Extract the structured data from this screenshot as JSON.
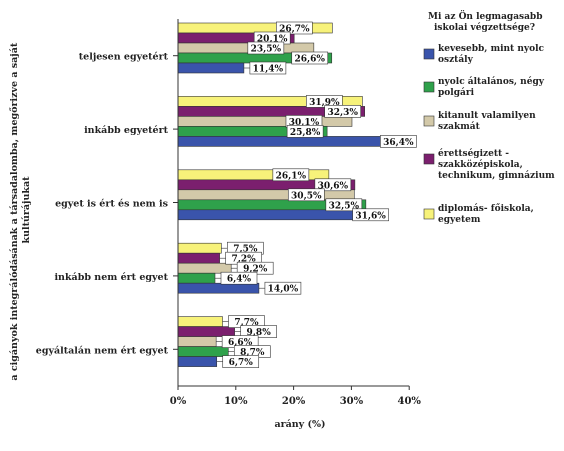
{
  "chart_data": {
    "type": "bar",
    "orientation": "horizontal",
    "categories": [
      "teljesen egyetért",
      "inkább egyetért",
      "egyet is ért és nem is",
      "inkább nem ért egyet",
      "egyáltalán nem ért egyet"
    ],
    "legend_title": "Mi az Ön legmagasabb iskolai végzettsége?",
    "series": [
      {
        "name": "kevesebb, mint nyolc osztály",
        "color": "#3a54ab",
        "values": [
          11.4,
          36.4,
          31.6,
          14.0,
          6.7
        ],
        "labels": [
          "11,4%",
          "36,4%",
          "31,6%",
          "14,0%",
          "6,7%"
        ]
      },
      {
        "name": "nyolc általános, négy polgári",
        "color": "#2fa14b",
        "values": [
          26.6,
          25.8,
          32.5,
          6.4,
          8.7
        ],
        "labels": [
          "26,6%",
          "25,8%",
          "32,5%",
          "6,4%",
          "8,7%"
        ]
      },
      {
        "name": "kitanult valamilyen szakmát",
        "color": "#d3c9a9",
        "values": [
          23.5,
          30.1,
          30.5,
          9.2,
          6.6
        ],
        "labels": [
          "23,5%",
          "30,1%",
          "30,5%",
          "9,2%",
          "6,6%"
        ]
      },
      {
        "name": "érettségizett - szakközépiskola, technikum, gimnázium",
        "color": "#7b1f6e",
        "values": [
          20.1,
          32.3,
          30.6,
          7.2,
          9.8
        ],
        "labels": [
          "20,1%",
          "32,3%",
          "30,6%",
          "7,2%",
          "9,8%"
        ]
      },
      {
        "name": "diplomás- főiskola, egyetem",
        "color": "#f7f27a",
        "values": [
          26.7,
          31.9,
          26.1,
          7.5,
          7.7
        ],
        "labels": [
          "26,7%",
          "31,9%",
          "26,1%",
          "7,5%",
          "7,7%"
        ]
      }
    ],
    "xlabel": "arány (%)",
    "ylabel": "a cigányok integrálódásának a társadalomba, megőrizve a saját kultúrájukat",
    "xlim": [
      0,
      40
    ],
    "xticks": [
      "0%",
      "10%",
      "20%",
      "30%",
      "40%"
    ],
    "grid": false,
    "legend_position": "right"
  }
}
